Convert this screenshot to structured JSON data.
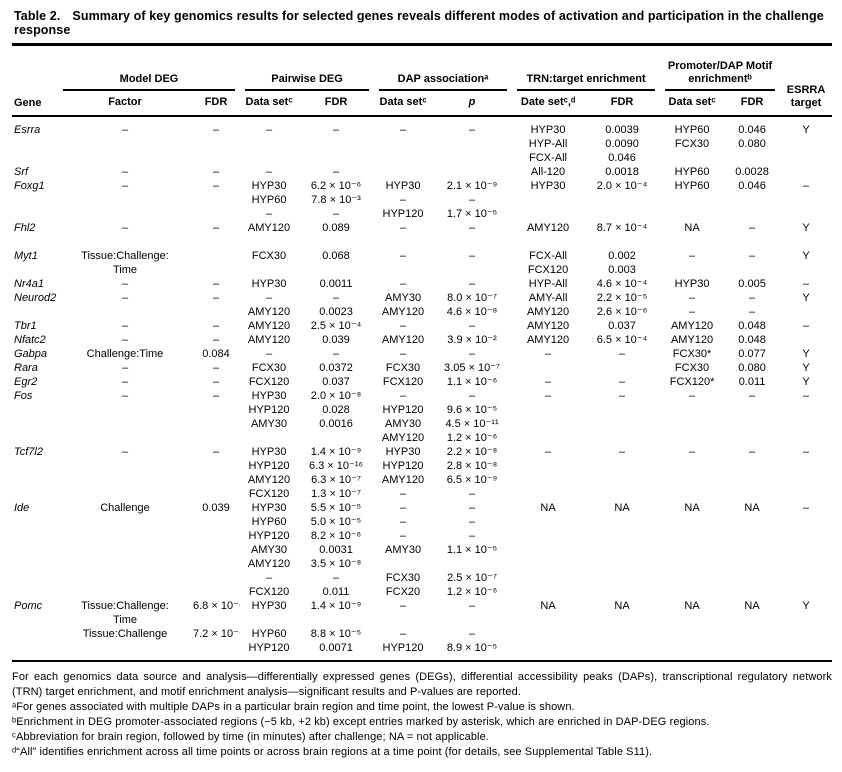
{
  "title": {
    "label": "Table 2.",
    "text": "Summary of key genomics results for selected genes reveals different modes of activation and participation in the challenge response"
  },
  "header": {
    "gene": "Gene",
    "esrra": "ESRRA target",
    "groups": [
      {
        "label": "Model DEG"
      },
      {
        "label": "Pairwise DEG"
      },
      {
        "label": "DAP associationᵃ"
      },
      {
        "label": "TRN:target enrichment"
      },
      {
        "label": "Promoter/DAP Motif enrichmentᵇ"
      }
    ],
    "sub": [
      "Factor",
      "FDR",
      "Data setᶜ",
      "FDR",
      "Data setᶜ",
      "p",
      "Date setᶜ,ᵈ",
      "FDR",
      "Data setᶜ",
      "FDR"
    ]
  },
  "table": {
    "rows": [
      {
        "c": [
          "Esrra",
          "–",
          "–",
          "–",
          "–",
          "–",
          "–",
          "HYP30",
          "0.0039",
          "HYP60",
          "0.046",
          "Y"
        ]
      },
      {
        "c": [
          "",
          "",
          "",
          "",
          "",
          "",
          "",
          "HYP-All",
          "0.0090",
          "FCX30",
          "0.080",
          ""
        ]
      },
      {
        "c": [
          "",
          "",
          "",
          "",
          "",
          "",
          "",
          "FCX-All",
          "0.046",
          "",
          "",
          ""
        ]
      },
      {
        "c": [
          "Srf",
          "–",
          "–",
          "–",
          "–",
          "",
          "",
          "All-120",
          "0.0018",
          "HYP60",
          "0.0028",
          ""
        ]
      },
      {
        "c": [
          "Foxg1",
          "–",
          "–",
          "HYP30",
          "6.2 × 10⁻⁶",
          "HYP30",
          "2.1 × 10⁻⁹",
          "HYP30",
          "2.0 × 10⁻⁴",
          "HYP60",
          "0.046",
          "–"
        ]
      },
      {
        "c": [
          "",
          "",
          "",
          "HYP60",
          "7.8 × 10⁻³",
          "–",
          "–",
          "",
          "",
          "",
          "",
          ""
        ]
      },
      {
        "c": [
          "",
          "",
          "",
          "–",
          "–",
          "HYP120",
          "1.7 × 10⁻⁵",
          "",
          "",
          "",
          "",
          ""
        ]
      },
      {
        "c": [
          "Fhl2",
          "–",
          "–",
          "AMY120",
          "0.089",
          "–",
          "–",
          "AMY120",
          "8.7 × 10⁻⁴",
          "NA",
          "–",
          "Y"
        ]
      },
      {
        "gap": true,
        "c": [
          "Myt1",
          "Tissue:Challenge:",
          "",
          "FCX30",
          "0.068",
          "–",
          "–",
          "FCX-All",
          "0.002",
          "–",
          "–",
          "Y"
        ]
      },
      {
        "c": [
          "",
          "Time",
          "",
          "",
          "",
          "",
          "",
          "FCX120",
          "0.003",
          "",
          "",
          ""
        ]
      },
      {
        "c": [
          "Nr4a1",
          "–",
          "–",
          "HYP30",
          "0.0011",
          "–",
          "–",
          "HYP-All",
          "4.6 × 10⁻⁴",
          "HYP30",
          "0.005",
          "–"
        ]
      },
      {
        "c": [
          "Neurod2",
          "–",
          "–",
          "–",
          "–",
          "AMY30",
          "8.0 × 10⁻⁷",
          "AMY-All",
          "2.2 × 10⁻⁵",
          "–",
          "–",
          "Y"
        ]
      },
      {
        "c": [
          "",
          "",
          "",
          "AMY120",
          "0.0023",
          "AMY120",
          "4.6 × 10⁻⁸",
          "AMY120",
          "2.6 × 10⁻⁶",
          "–",
          "–",
          ""
        ]
      },
      {
        "c": [
          "Tbr1",
          "–",
          "–",
          "AMY120",
          "2.5 × 10⁻⁴",
          "–",
          "–",
          "AMY120",
          "0.037",
          "AMY120",
          "0.048",
          "–"
        ]
      },
      {
        "c": [
          "Nfatc2",
          "–",
          "–",
          "AMY120",
          "0.039",
          "AMY120",
          "3.9 × 10⁻²",
          "AMY120",
          "6.5 × 10⁻⁴",
          "AMY120",
          "0.048",
          ""
        ]
      },
      {
        "c": [
          "Gabpa",
          "Challenge:Time",
          "0.084",
          "–",
          "–",
          "–",
          "–",
          "–",
          "–",
          "FCX30*",
          "0.077",
          "Y"
        ]
      },
      {
        "c": [
          "Rara",
          "–",
          "–",
          "FCX30",
          "0.0372",
          "FCX30",
          "3.05 × 10⁻⁷",
          "",
          "",
          "FCX30",
          "0.080",
          "Y"
        ]
      },
      {
        "c": [
          "Egr2",
          "–",
          "–",
          "FCX120",
          "0.037",
          "FCX120",
          "1.1 × 10⁻⁶",
          "–",
          "–",
          "FCX120*",
          "0.011",
          "Y"
        ]
      },
      {
        "c": [
          "Fos",
          "–",
          "–",
          "HYP30",
          "2.0 × 10⁻⁸",
          "–",
          "–",
          "–",
          "–",
          "–",
          "–",
          "–"
        ]
      },
      {
        "c": [
          "",
          "",
          "",
          "HYP120",
          "0.028",
          "HYP120",
          "9.6 × 10⁻⁵",
          "",
          "",
          "",
          "",
          ""
        ]
      },
      {
        "c": [
          "",
          "",
          "",
          "AMY30",
          "0.0016",
          "AMY30",
          "4.5 × 10⁻¹¹",
          "",
          "",
          "",
          "",
          ""
        ]
      },
      {
        "c": [
          "",
          "",
          "",
          "",
          "",
          "AMY120",
          "1.2 × 10⁻⁶",
          "",
          "",
          "",
          "",
          ""
        ]
      },
      {
        "c": [
          "Tcf7l2",
          "–",
          "–",
          "HYP30",
          "1.4 × 10⁻⁹",
          "HYP30",
          "2.2 × 10⁻⁸",
          "–",
          "–",
          "–",
          "–",
          "–"
        ]
      },
      {
        "c": [
          "",
          "",
          "",
          "HYP120",
          "6.3 × 10⁻¹⁶",
          "HYP120",
          "2.8 × 10⁻⁸",
          "",
          "",
          "",
          "",
          ""
        ]
      },
      {
        "c": [
          "",
          "",
          "",
          "AMY120",
          "6.3 × 10⁻⁷",
          "AMY120",
          "6.5 × 10⁻⁹",
          "",
          "",
          "",
          "",
          ""
        ]
      },
      {
        "c": [
          "",
          "",
          "",
          "FCX120",
          "1.3 × 10⁻⁷",
          "–",
          "–",
          "",
          "",
          "",
          "",
          ""
        ]
      },
      {
        "c": [
          "Ide",
          "Challenge",
          "0.039",
          "HYP30",
          "5.5 × 10⁻⁵",
          "–",
          "–",
          "NA",
          "NA",
          "NA",
          "NA",
          "–"
        ]
      },
      {
        "c": [
          "",
          "",
          "",
          "HYP60",
          "5.0 × 10⁻⁵",
          "–",
          "–",
          "",
          "",
          "",
          "",
          ""
        ]
      },
      {
        "c": [
          "",
          "",
          "",
          "HYP120",
          "8.2 × 10⁻⁶",
          "–",
          "–",
          "",
          "",
          "",
          "",
          ""
        ]
      },
      {
        "c": [
          "",
          "",
          "",
          "AMY30",
          "0.0031",
          "AMY30",
          "1.1 × 10⁻⁵",
          "",
          "",
          "",
          "",
          ""
        ]
      },
      {
        "c": [
          "",
          "",
          "",
          "AMY120",
          "3.5 × 10⁻⁸",
          "",
          "",
          "",
          "",
          "",
          "",
          ""
        ]
      },
      {
        "c": [
          "",
          "",
          "",
          "–",
          "–",
          "FCX30",
          "2.5 × 10⁻⁷",
          "",
          "",
          "",
          "",
          ""
        ]
      },
      {
        "c": [
          "",
          "",
          "",
          "FCX120",
          "0.011",
          "FCX20",
          "1.2 × 10⁻⁶",
          "",
          "",
          "",
          "",
          ""
        ]
      },
      {
        "c": [
          "Pomc",
          "Tissue:Challenge:",
          "6.8 × 10⁻⁴",
          "HYP30",
          "1.4 × 10⁻⁹",
          "–",
          "–",
          "NA",
          "NA",
          "NA",
          "NA",
          "Y"
        ]
      },
      {
        "c": [
          "",
          "Time",
          "",
          "",
          "",
          "",
          "",
          "",
          "",
          "",
          "",
          ""
        ]
      },
      {
        "c": [
          "",
          "Tissue:Challenge",
          "7.2 × 10⁻⁴",
          "HYP60",
          "8.8 × 10⁻⁵",
          "–",
          "–",
          "",
          "",
          "",
          "",
          ""
        ]
      },
      {
        "c": [
          "",
          "",
          "",
          "HYP120",
          "0.0071",
          "HYP120",
          "8.9 × 10⁻⁵",
          "",
          "",
          "",
          "",
          ""
        ]
      }
    ]
  },
  "footnotes": [
    "For each genomics data source and analysis—differentially expressed genes (DEGs), differential accessibility peaks (DAPs), transcriptional regulatory network (TRN) target enrichment, and motif enrichment analysis—significant results and P-values are reported.",
    "ᵃFor genes associated with multiple DAPs in a particular brain region and time point, the lowest P-value is shown.",
    "ᵇEnrichment in DEG promoter-associated regions (−5 kb, +2 kb) except entries marked by asterisk, which are enriched in DAP-DEG regions.",
    "ᶜAbbreviation for brain region, followed by time (in minutes) after challenge; NA = not applicable.",
    "ᵈ“All” identifies enrichment across all time points or across brain regions at a time point (for details, see Supplemental Table S11)."
  ]
}
